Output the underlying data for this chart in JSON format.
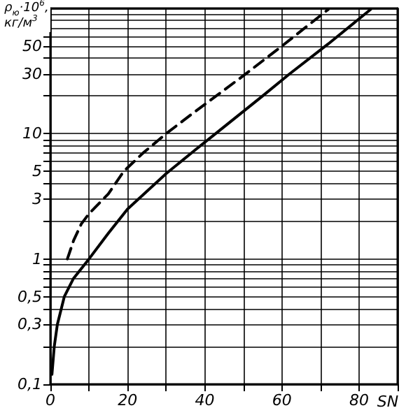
{
  "chart_data": {
    "type": "line",
    "ylabel": "ρ$_{ю}$·10$^{6}$, кг/м$^{3}$",
    "xlabel": "SN",
    "log": "y",
    "grid": true,
    "marker": "none",
    "xlim": [
      0,
      90
    ],
    "xticks": [
      0,
      {
        "value": 10,
        "label": null
      },
      20,
      {
        "value": 30,
        "label": null
      },
      40,
      {
        "value": 50,
        "label": null
      },
      60,
      {
        "value": 70,
        "label": null
      },
      80,
      {
        "value": 90,
        "label": null
      }
    ],
    "ylim": [
      0.1,
      100
    ],
    "yticks": [
      {
        "value": 0.1,
        "label": "0,1"
      },
      {
        "value": 0.2,
        "label": null
      },
      {
        "value": 0.3,
        "label": "0,3"
      },
      {
        "value": 0.4,
        "label": null
      },
      {
        "value": 0.5,
        "label": "0,5"
      },
      {
        "value": 0.6,
        "label": null
      },
      {
        "value": 0.7,
        "label": null
      },
      {
        "value": 0.8,
        "label": null
      },
      {
        "value": 0.9,
        "label": null
      },
      1,
      {
        "value": 2,
        "label": null
      },
      3,
      {
        "value": 4,
        "label": null
      },
      5,
      {
        "value": 6,
        "label": null
      },
      {
        "value": 7,
        "label": null
      },
      {
        "value": 8,
        "label": null
      },
      {
        "value": 9,
        "label": null
      },
      10,
      {
        "value": 20,
        "label": null
      },
      30,
      {
        "value": 40,
        "label": null
      },
      50,
      {
        "value": 60,
        "label": null
      },
      {
        "value": 70,
        "label": null
      },
      {
        "value": 80,
        "label": null
      },
      {
        "value": 90,
        "label": null
      },
      {
        "value": 100,
        "label": null
      }
    ],
    "series": [
      {
        "color": "#000000",
        "line_style": "solid",
        "x": [
          0.4,
          1,
          1.8,
          3.6,
          6,
          10,
          15,
          20,
          30,
          37.5,
          42.8,
          55,
          62,
          72,
          83
        ],
        "values": [
          0.12,
          0.2,
          0.3,
          0.5,
          0.7,
          1,
          1.6,
          2.5,
          4.8,
          7.4,
          10,
          20,
          30,
          52,
          98
        ]
      },
      {
        "color": "#000000",
        "line_style": "dashed",
        "x": [
          4.4,
          6,
          8,
          10,
          15,
          19,
          24,
          30,
          37.5,
          50,
          60,
          72
        ],
        "values": [
          1,
          1.4,
          1.9,
          2.3,
          3.3,
          5,
          7,
          10,
          15,
          29,
          50,
          98
        ]
      }
    ]
  }
}
